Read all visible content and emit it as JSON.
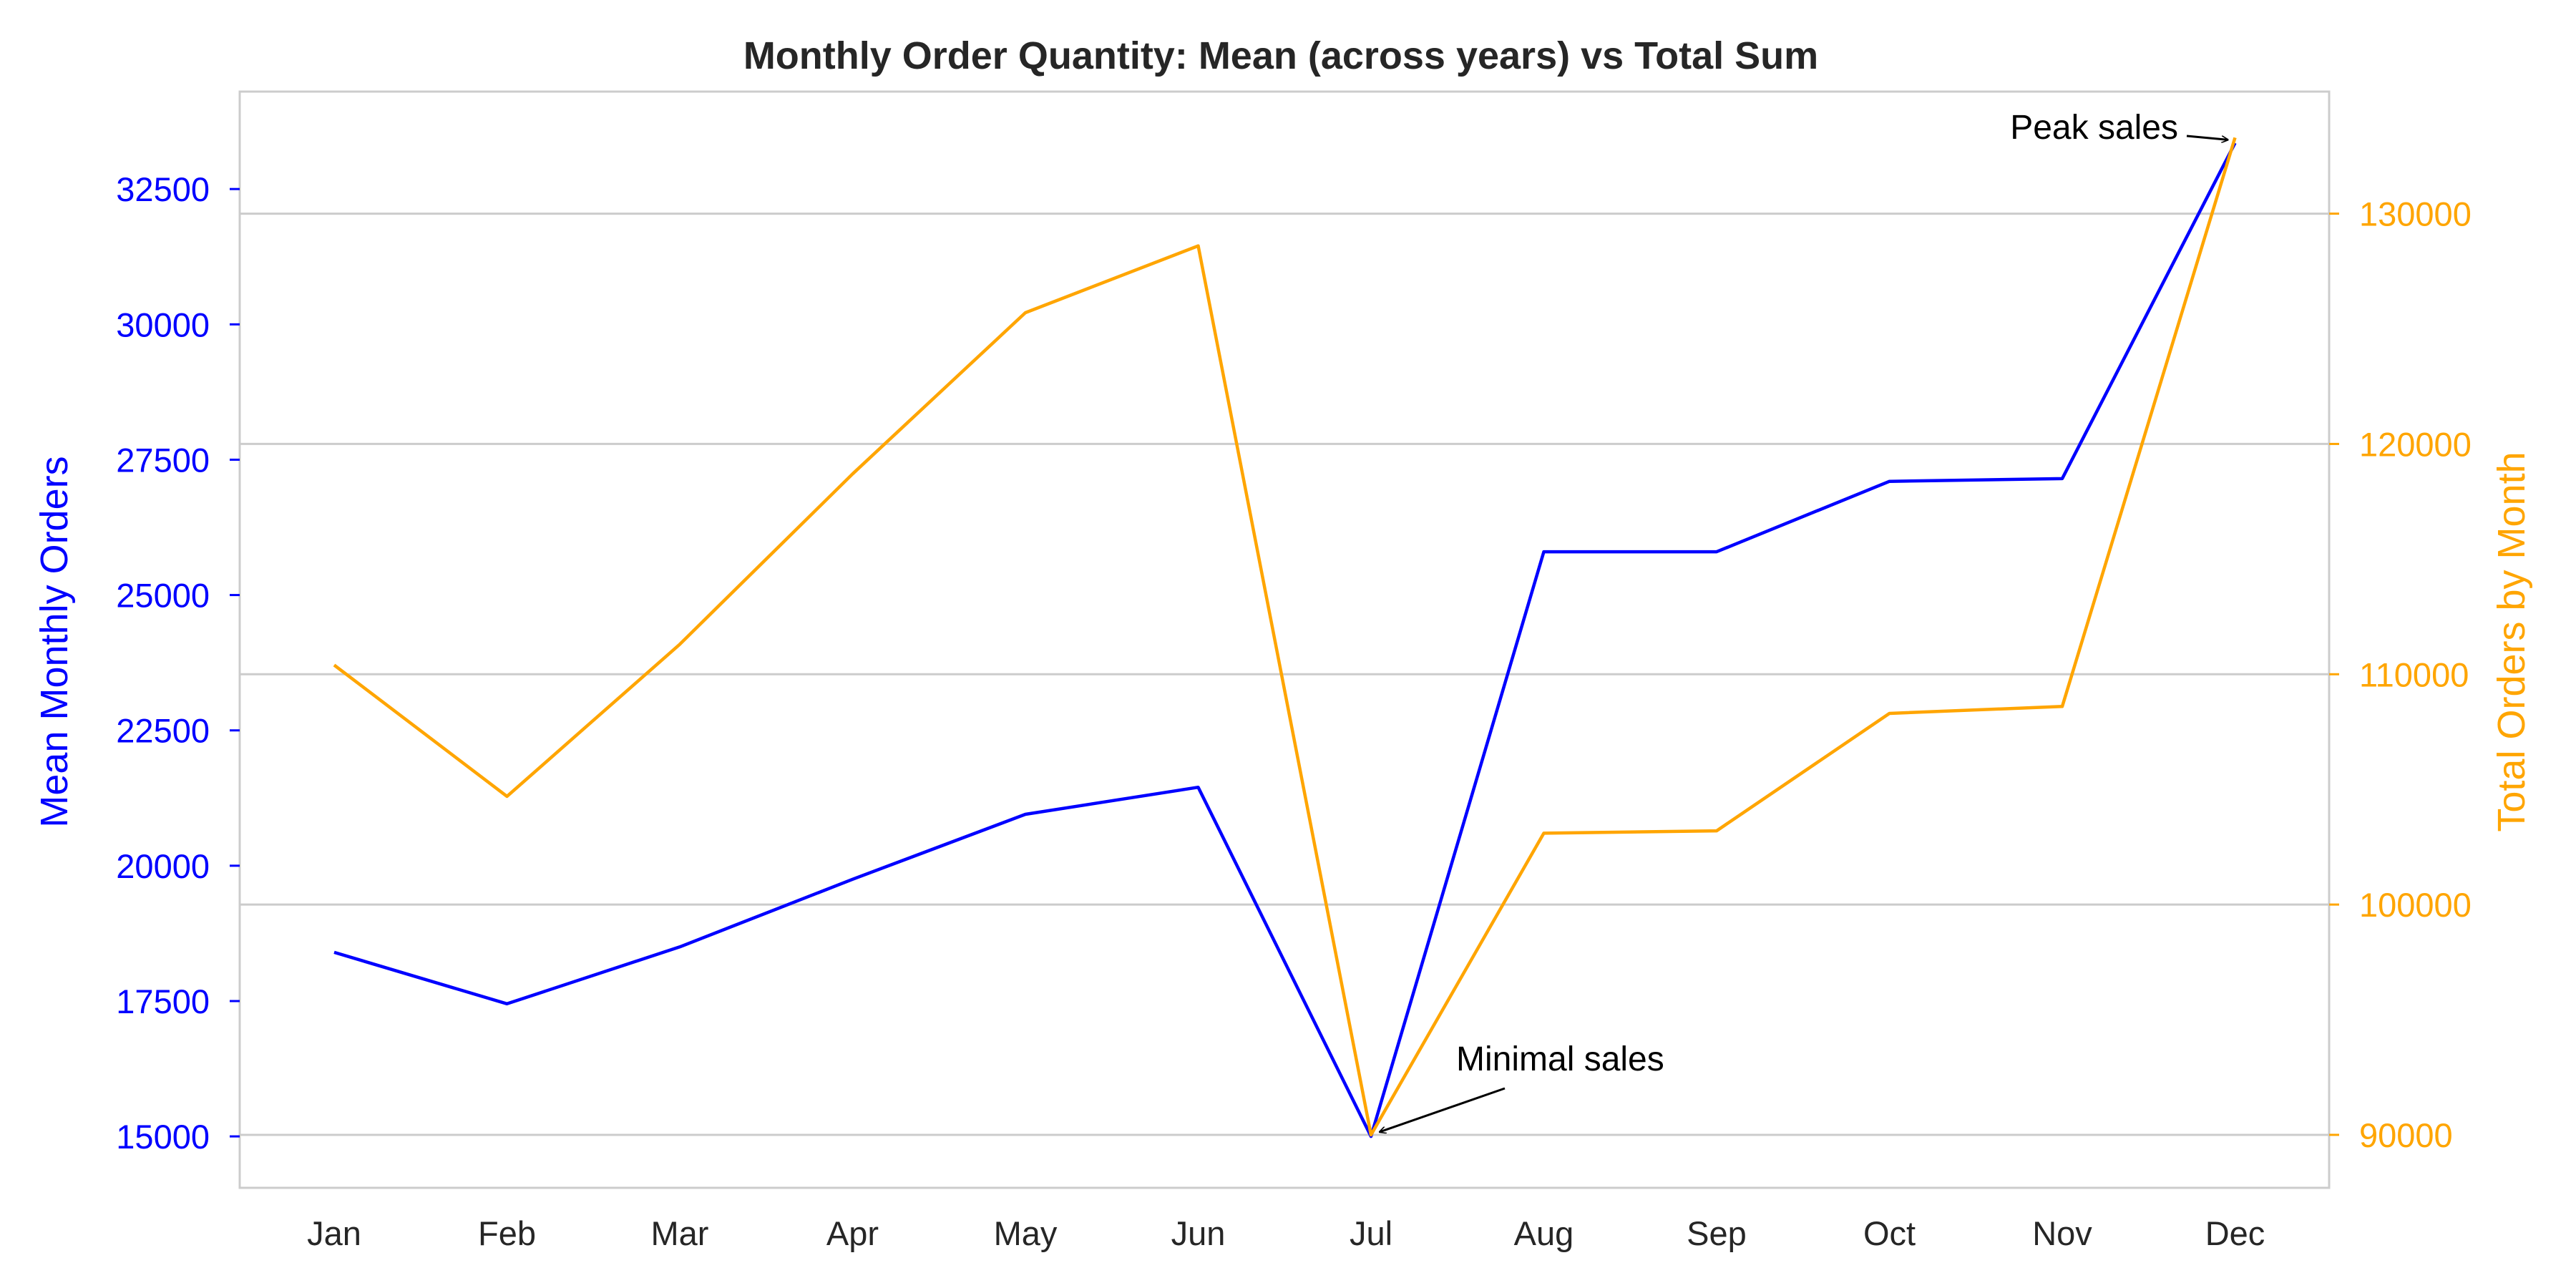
{
  "chart_data": {
    "type": "line",
    "title": "Monthly Order Quantity: Mean (across years) vs Total Sum",
    "categories": [
      "Jan",
      "Feb",
      "Mar",
      "Apr",
      "May",
      "Jun",
      "Jul",
      "Aug",
      "Sep",
      "Oct",
      "Nov",
      "Dec"
    ],
    "left_axis": {
      "label": "Mean Monthly Orders",
      "color": "#0000ff",
      "ylim": [
        14050,
        34300
      ],
      "ticks": [
        15000,
        17500,
        20000,
        22500,
        25000,
        27500,
        30000,
        32500
      ]
    },
    "right_axis": {
      "label": "Total Orders by Month",
      "color": "#ffa500",
      "ylim": [
        87700,
        135300
      ],
      "ticks": [
        90000,
        100000,
        110000,
        120000,
        130000
      ]
    },
    "series": [
      {
        "axis": "left",
        "color": "#0000ff",
        "values": [
          18400,
          17450,
          18500,
          19750,
          20950,
          21450,
          15000,
          25800,
          25800,
          27100,
          27150,
          33350
        ]
      },
      {
        "axis": "right",
        "color": "#ffa500",
        "values": [
          110400,
          104700,
          111300,
          118700,
          125700,
          128600,
          90000,
          103100,
          103200,
          108300,
          108600,
          133300
        ]
      }
    ],
    "annotations": [
      {
        "text": "Peak sales",
        "category": "Dec",
        "axis": "right",
        "value": 133300
      },
      {
        "text": "Minimal sales",
        "category": "Jul",
        "axis": "right",
        "value": 90000
      }
    ],
    "grid": "horizontal (right axis)",
    "legend": "none"
  }
}
